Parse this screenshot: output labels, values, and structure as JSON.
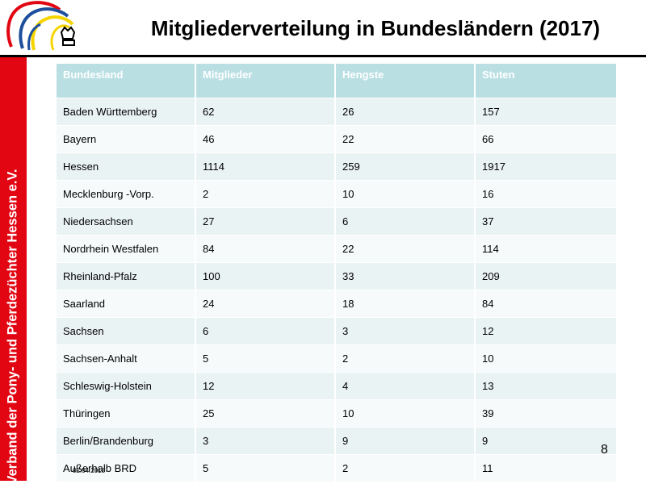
{
  "header": {
    "title": "Mitgliederverteilung in Bundesländern (2017)"
  },
  "sidebar": {
    "text": "Verband der Pony- und Pferdezüchter Hessen e.V."
  },
  "logo": {
    "icon": "horse-heads-logo-icon",
    "colors": [
      "#e20613",
      "#1d4f9c",
      "#f6d400",
      "#000000"
    ]
  },
  "table": {
    "headers": [
      "Bundesland",
      "Mitglieder",
      "Hengste",
      "Stuten"
    ],
    "rows": [
      [
        "Baden Württemberg",
        "62",
        "26",
        "157"
      ],
      [
        "Bayern",
        "46",
        "22",
        "66"
      ],
      [
        "Hessen",
        "1114",
        "259",
        "1917"
      ],
      [
        "Mecklenburg -Vorp.",
        "2",
        "10",
        "16"
      ],
      [
        "Niedersachsen",
        "27",
        "6",
        "37"
      ],
      [
        "Nordrhein Westfalen",
        "84",
        "22",
        "114"
      ],
      [
        "Rheinland-Pfalz",
        "100",
        "33",
        "209"
      ],
      [
        "Saarland",
        "24",
        "18",
        "84"
      ],
      [
        "Sachsen",
        "6",
        "3",
        "12"
      ],
      [
        "Sachsen-Anhalt",
        "5",
        "2",
        "10"
      ],
      [
        "Schleswig-Holstein",
        "12",
        "4",
        "13"
      ],
      [
        "Thüringen",
        "25",
        "10",
        "39"
      ],
      [
        "Berlin/Brandenburg",
        "3",
        "9",
        "9"
      ],
      [
        "Außerhalb BRD",
        "5",
        "2",
        "11"
      ]
    ]
  },
  "footer": {
    "page_number": "8",
    "date": "02.04.2018"
  },
  "colors": {
    "accent_red": "#e20613",
    "header_teal": "#b9dfe3",
    "row_light": "#eaf3f4"
  }
}
